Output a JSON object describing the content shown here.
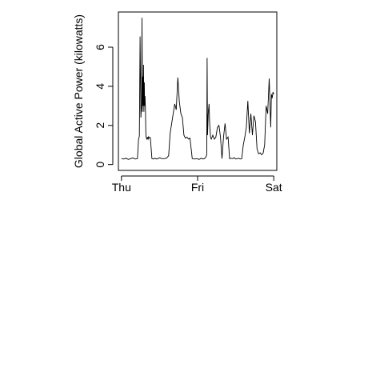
{
  "chart_data": {
    "type": "line",
    "title": "",
    "xlabel": "",
    "ylabel": "Global Active Power (kilowatts)",
    "x_ticks": [
      "Thu",
      "Fri",
      "Sat"
    ],
    "x_tick_positions": [
      0,
      1,
      2
    ],
    "y_ticks": [
      "0",
      "2",
      "4",
      "6"
    ],
    "y_tick_values": [
      0,
      2,
      4,
      6
    ],
    "xlim": [
      -0.04,
      2.04
    ],
    "ylim": [
      -0.3,
      7.8
    ],
    "grid": false,
    "legend": "none",
    "line_color": "#000000",
    "series": [
      {
        "x": [
          0.0,
          0.03,
          0.06,
          0.09,
          0.12,
          0.15,
          0.18,
          0.21,
          0.225,
          0.235,
          0.245,
          0.255,
          0.265,
          0.27,
          0.275,
          0.28,
          0.285,
          0.29,
          0.295,
          0.3,
          0.305,
          0.31,
          0.315,
          0.32,
          0.325,
          0.33,
          0.335,
          0.34,
          0.345,
          0.35,
          0.355,
          0.36,
          0.37,
          0.38,
          0.4,
          0.42,
          0.44,
          0.46,
          0.48,
          0.5,
          0.53,
          0.56,
          0.59,
          0.62,
          0.64,
          0.66,
          0.68,
          0.7,
          0.72,
          0.74,
          0.76,
          0.78,
          0.8,
          0.82,
          0.84,
          0.86,
          0.88,
          0.9,
          0.93,
          0.96,
          0.99,
          1.02,
          1.05,
          1.07,
          1.09,
          1.11,
          1.12,
          1.125,
          1.13,
          1.14,
          1.15,
          1.16,
          1.17,
          1.18,
          1.2,
          1.22,
          1.24,
          1.26,
          1.28,
          1.3,
          1.32,
          1.34,
          1.36,
          1.38,
          1.4,
          1.42,
          1.44,
          1.46,
          1.48,
          1.5,
          1.52,
          1.54,
          1.56,
          1.58,
          1.6,
          1.62,
          1.64,
          1.66,
          1.68,
          1.7,
          1.72,
          1.74,
          1.76,
          1.78,
          1.8,
          1.82,
          1.84,
          1.86,
          1.88,
          1.9,
          1.92,
          1.94,
          1.96,
          1.97,
          1.98,
          1.99,
          2.0
        ],
        "y": [
          0.3,
          0.28,
          0.32,
          0.26,
          0.3,
          0.34,
          0.28,
          0.3,
          1.3,
          1.45,
          6.55,
          2.4,
          3.1,
          7.5,
          2.7,
          4.5,
          3.0,
          5.1,
          2.7,
          4.2,
          3.0,
          3.5,
          2.8,
          1.6,
          1.4,
          1.35,
          1.3,
          1.4,
          1.35,
          1.3,
          1.4,
          1.35,
          1.4,
          1.35,
          0.3,
          0.28,
          0.32,
          0.28,
          0.3,
          0.35,
          0.3,
          0.3,
          0.32,
          0.45,
          1.6,
          2.1,
          2.6,
          3.1,
          2.8,
          4.45,
          3.2,
          2.6,
          2.4,
          1.5,
          1.35,
          1.4,
          1.3,
          1.35,
          0.3,
          0.28,
          0.3,
          0.26,
          0.32,
          0.28,
          0.3,
          0.4,
          0.5,
          5.45,
          1.5,
          2.6,
          3.1,
          2.0,
          1.4,
          1.3,
          1.5,
          1.3,
          1.4,
          1.9,
          2.0,
          1.4,
          0.3,
          1.4,
          2.1,
          1.3,
          1.4,
          0.3,
          0.32,
          0.3,
          0.35,
          0.28,
          0.3,
          0.32,
          0.28,
          0.3,
          1.0,
          1.4,
          1.9,
          3.25,
          1.6,
          2.6,
          1.5,
          2.5,
          2.2,
          0.8,
          0.55,
          0.6,
          0.5,
          0.58,
          1.0,
          3.0,
          2.6,
          4.4,
          1.9,
          3.6,
          3.4,
          3.7,
          3.6
        ]
      }
    ]
  }
}
